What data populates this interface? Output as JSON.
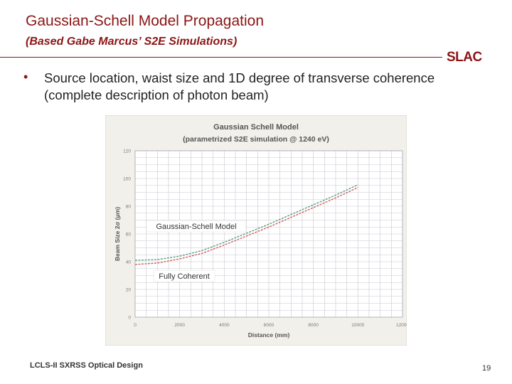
{
  "slide": {
    "title": "Gaussian-Schell Model Propagation",
    "subtitle": "(Based Gabe Marcus’ S2E Simulations)",
    "logo": "SLAC",
    "bullet": "Source location, waist size and 1D degree of transverse coherence (complete description of photon beam)",
    "footer": "LCLS-II SXRSS Optical Design",
    "page_number": "19"
  },
  "colors": {
    "accent": "#8c1515",
    "chart_bg": "#f2f0ea",
    "plot_bg": "#ffffff",
    "grid": "#c8c8d2",
    "axis_text": "#7a7a7a",
    "series_gsm": "#5a9e8a",
    "series_coherent": "#d06060"
  },
  "chart_data": {
    "type": "line",
    "title": "Gaussian Schell Model",
    "subtitle": "(parametrized S2E simulation @ 1240 eV)",
    "xlabel": "Distance (mm)",
    "ylabel": "Beam Size 2σ (μm)",
    "xlim": [
      0,
      12000
    ],
    "ylim": [
      0,
      120
    ],
    "x_ticks": [
      0,
      2000,
      4000,
      6000,
      8000,
      10000,
      12000
    ],
    "y_ticks": [
      0,
      20,
      40,
      60,
      80,
      100,
      120
    ],
    "grid": true,
    "annotations": [
      "Gaussian-Schell Model",
      "Fully Coherent"
    ],
    "series": [
      {
        "x": [
          0,
          1000,
          2000,
          3000,
          4000,
          5000,
          6000,
          7000,
          8000,
          9000,
          10000
        ],
        "values": [
          41,
          41.5,
          44,
          48,
          54,
          60.5,
          67,
          74,
          81,
          88,
          95.5
        ]
      },
      {
        "x": [
          0,
          1000,
          2000,
          3000,
          4000,
          5000,
          6000,
          7000,
          8000,
          9000,
          10000
        ],
        "values": [
          38,
          39,
          42,
          46,
          52,
          58.5,
          65,
          72,
          79,
          86,
          93.5
        ]
      }
    ]
  }
}
